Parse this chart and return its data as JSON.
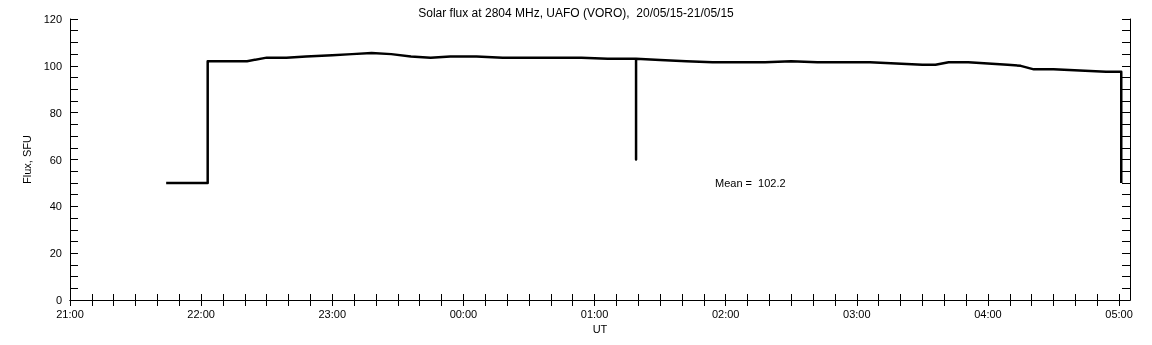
{
  "chart_data": {
    "type": "line",
    "title": "Solar flux at 2804 MHz, UAFO (VORO),  20/05/15-21/05/15",
    "xlabel": "UT",
    "ylabel": "Flux, SFU",
    "annotations": [
      "Mean =  102.2"
    ],
    "marker": "none",
    "line_style": "solid",
    "xlim": [
      "--05-20T21:00",
      "--05-21T05:05"
    ],
    "ylim": [
      0,
      120
    ],
    "xticks": [
      {
        "value": "--05-20T21:00",
        "label": "21:00"
      },
      {
        "value": "--05-20T21:10",
        "label": null
      },
      {
        "value": "--05-20T21:20",
        "label": null
      },
      {
        "value": "--05-20T21:30",
        "label": null
      },
      {
        "value": "--05-20T21:40",
        "label": null
      },
      {
        "value": "--05-20T21:50",
        "label": null
      },
      {
        "value": "--05-20T22:00",
        "label": "22:00"
      },
      {
        "value": "--05-20T22:10",
        "label": null
      },
      {
        "value": "--05-20T22:20",
        "label": null
      },
      {
        "value": "--05-20T22:30",
        "label": null
      },
      {
        "value": "--05-20T22:40",
        "label": null
      },
      {
        "value": "--05-20T22:50",
        "label": null
      },
      {
        "value": "--05-20T23:00",
        "label": "23:00"
      },
      {
        "value": "--05-20T23:10",
        "label": null
      },
      {
        "value": "--05-20T23:20",
        "label": null
      },
      {
        "value": "--05-20T23:30",
        "label": null
      },
      {
        "value": "--05-20T23:40",
        "label": null
      },
      {
        "value": "--05-20T23:50",
        "label": null
      },
      {
        "value": "--05-21T00:00",
        "label": "00:00"
      },
      {
        "value": "--05-21T00:10",
        "label": null
      },
      {
        "value": "--05-21T00:20",
        "label": null
      },
      {
        "value": "--05-21T00:30",
        "label": null
      },
      {
        "value": "--05-21T00:40",
        "label": null
      },
      {
        "value": "--05-21T00:50",
        "label": null
      },
      {
        "value": "--05-21T01:00",
        "label": "01:00"
      },
      {
        "value": "--05-21T01:10",
        "label": null
      },
      {
        "value": "--05-21T01:20",
        "label": null
      },
      {
        "value": "--05-21T01:30",
        "label": null
      },
      {
        "value": "--05-21T01:40",
        "label": null
      },
      {
        "value": "--05-21T01:50",
        "label": null
      },
      {
        "value": "--05-21T02:00",
        "label": "02:00"
      },
      {
        "value": "--05-21T02:10",
        "label": null
      },
      {
        "value": "--05-21T02:20",
        "label": null
      },
      {
        "value": "--05-21T02:30",
        "label": null
      },
      {
        "value": "--05-21T02:40",
        "label": null
      },
      {
        "value": "--05-21T02:50",
        "label": null
      },
      {
        "value": "--05-21T03:00",
        "label": "03:00"
      },
      {
        "value": "--05-21T03:10",
        "label": null
      },
      {
        "value": "--05-21T03:20",
        "label": null
      },
      {
        "value": "--05-21T03:30",
        "label": null
      },
      {
        "value": "--05-21T03:40",
        "label": null
      },
      {
        "value": "--05-21T03:50",
        "label": null
      },
      {
        "value": "--05-21T04:00",
        "label": "04:00"
      },
      {
        "value": "--05-21T04:10",
        "label": null
      },
      {
        "value": "--05-21T04:20",
        "label": null
      },
      {
        "value": "--05-21T04:30",
        "label": null
      },
      {
        "value": "--05-21T04:40",
        "label": null
      },
      {
        "value": "--05-21T04:50",
        "label": null
      },
      {
        "value": "--05-21T05:00",
        "label": "05:00"
      }
    ],
    "yticks": [
      0,
      {
        "value": 5,
        "label": null
      },
      {
        "value": 10,
        "label": null
      },
      {
        "value": 15,
        "label": null
      },
      20,
      {
        "value": 25,
        "label": null
      },
      {
        "value": 30,
        "label": null
      },
      {
        "value": 35,
        "label": null
      },
      40,
      {
        "value": 45,
        "label": null
      },
      {
        "value": 50,
        "label": null
      },
      {
        "value": 55,
        "label": null
      },
      60,
      {
        "value": 65,
        "label": null
      },
      {
        "value": 70,
        "label": null
      },
      {
        "value": 75,
        "label": null
      },
      80,
      {
        "value": 85,
        "label": null
      },
      {
        "value": 90,
        "label": null
      },
      {
        "value": 95,
        "label": null
      },
      100,
      {
        "value": 105,
        "label": null
      },
      {
        "value": 110,
        "label": null
      },
      {
        "value": 115,
        "label": null
      },
      120
    ],
    "series": [
      {
        "color": "#000000",
        "x": [
          "--05-20T21:44",
          "--05-20T22:03",
          "--05-20T22:03",
          "--05-20T22:12",
          "--05-20T22:21",
          "--05-20T22:30",
          "--05-20T22:39",
          "--05-20T22:48",
          "--05-20T23:00",
          "--05-20T23:09",
          "--05-20T23:18",
          "--05-20T23:27",
          "--05-20T23:36",
          "--05-20T23:45",
          "--05-20T23:54",
          "--05-21T00:06",
          "--05-21T00:18",
          "--05-21T00:30",
          "--05-21T00:42",
          "--05-21T00:54",
          "--05-21T01:06",
          "--05-21T01:19",
          "--05-21T01:19",
          "--05-21T01:19",
          "--05-21T01:30",
          "--05-21T01:42",
          "--05-21T01:54",
          "--05-21T02:06",
          "--05-21T02:18",
          "--05-21T02:30",
          "--05-21T02:42",
          "--05-21T02:54",
          "--05-21T03:06",
          "--05-21T03:18",
          "--05-21T03:30",
          "--05-21T03:36",
          "--05-21T03:42",
          "--05-21T03:51",
          "--05-21T04:00",
          "--05-21T04:09",
          "--05-21T04:15",
          "--05-21T04:21",
          "--05-21T04:30",
          "--05-21T04:42",
          "--05-21T04:54",
          "--05-21T05:01",
          "--05-21T05:01"
        ],
        "values": [
          50,
          50,
          102,
          102,
          102,
          103.5,
          103.5,
          104,
          104.5,
          105,
          105.5,
          105,
          104,
          103.5,
          104,
          104,
          103.5,
          103.5,
          103.5,
          103.5,
          103,
          103,
          60,
          103,
          102.5,
          102,
          101.5,
          101.5,
          101.5,
          102,
          101.5,
          101.5,
          101.5,
          101,
          100.5,
          100.5,
          101.5,
          101.5,
          101,
          100.5,
          100,
          98.5,
          98.5,
          98,
          97.5,
          97.5,
          50
        ]
      }
    ]
  }
}
